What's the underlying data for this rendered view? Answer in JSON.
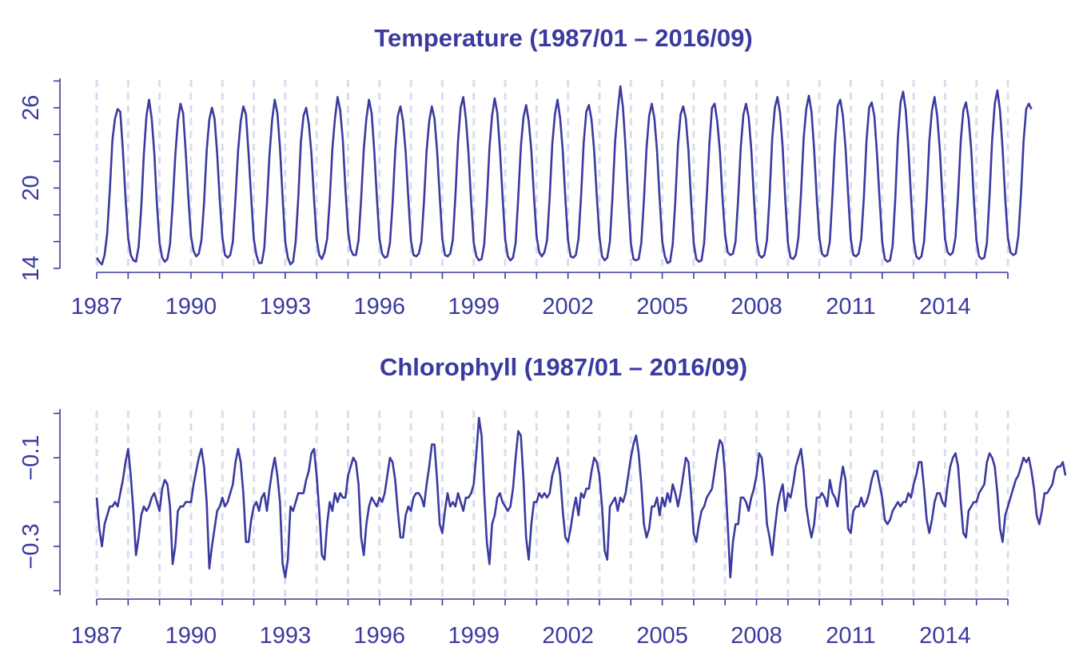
{
  "colors": {
    "primary": "#3a3aa0",
    "grid": "#dcdcf0",
    "background": "#ffffff"
  },
  "chart_data": [
    {
      "type": "line",
      "title": "Temperature (1987/01 – 2016/09)",
      "xlabel": "",
      "ylabel": "",
      "xlim": [
        "1987-01",
        "2016-09"
      ],
      "ylim": [
        14,
        28.2
      ],
      "x_ticks": [
        "1987",
        "1990",
        "1993",
        "1996",
        "1999",
        "2002",
        "2005",
        "2008",
        "2011",
        "2014"
      ],
      "y_ticks": [
        "14",
        "20",
        "26"
      ],
      "y_tick_values": [
        14,
        20,
        26
      ],
      "y_minor_ticks": [
        16,
        18,
        22,
        24,
        28
      ],
      "grid": "vertical dashed at each year",
      "start": "1987-01",
      "frequency": "monthly",
      "series": [
        {
          "values": [
            14.8,
            14.5,
            14.3,
            15.0,
            16.6,
            19.8,
            23.6,
            25.2,
            25.9,
            25.7,
            22.8,
            19.3,
            16.3,
            15.0,
            14.6,
            14.5,
            15.6,
            18.5,
            22.5,
            25.4,
            26.6,
            25.2,
            22.6,
            18.8,
            15.9,
            14.8,
            14.5,
            14.7,
            15.8,
            18.8,
            22.4,
            25.0,
            26.3,
            25.6,
            22.7,
            19.3,
            16.4,
            15.3,
            14.9,
            15.1,
            16.1,
            18.9,
            22.8,
            25.1,
            26.0,
            25.2,
            22.6,
            19.1,
            16.3,
            15.0,
            14.8,
            15.0,
            16.0,
            19.2,
            22.8,
            25.0,
            26.1,
            25.5,
            22.6,
            19.3,
            16.2,
            15.0,
            14.4,
            14.4,
            15.5,
            18.8,
            22.5,
            25.1,
            26.6,
            25.6,
            23.0,
            19.3,
            16.0,
            14.8,
            14.3,
            14.5,
            16.0,
            19.3,
            23.5,
            25.4,
            26.0,
            24.8,
            22.6,
            19.2,
            16.2,
            15.0,
            14.7,
            15.2,
            16.2,
            19.1,
            22.9,
            25.2,
            26.8,
            25.8,
            23.6,
            19.9,
            16.8,
            15.4,
            15.0,
            15.0,
            16.1,
            19.2,
            22.9,
            25.2,
            26.6,
            25.6,
            22.8,
            19.3,
            16.2,
            15.1,
            14.8,
            14.9,
            15.9,
            18.8,
            22.7,
            25.4,
            26.1,
            25.0,
            22.7,
            19.3,
            16.1,
            15.0,
            14.9,
            15.1,
            16.0,
            19.0,
            22.8,
            25.0,
            26.1,
            25.2,
            22.8,
            19.4,
            16.2,
            15.0,
            14.9,
            15.1,
            16.1,
            19.4,
            23.5,
            26.0,
            26.8,
            25.2,
            22.6,
            19.0,
            15.9,
            14.9,
            14.6,
            14.7,
            15.8,
            19.0,
            23.0,
            25.4,
            26.7,
            25.6,
            22.9,
            19.4,
            16.2,
            14.9,
            14.6,
            14.8,
            15.9,
            19.3,
            23.1,
            25.3,
            26.2,
            25.0,
            22.8,
            19.4,
            16.4,
            15.2,
            14.9,
            15.2,
            16.1,
            19.3,
            23.3,
            25.5,
            26.6,
            25.2,
            22.8,
            19.2,
            16.1,
            14.9,
            14.8,
            15.0,
            16.2,
            19.4,
            23.4,
            25.7,
            26.2,
            25.1,
            22.8,
            19.4,
            16.4,
            14.9,
            14.6,
            14.8,
            16.0,
            19.4,
            23.5,
            25.8,
            27.6,
            26.0,
            23.0,
            19.2,
            15.9,
            14.7,
            14.6,
            14.7,
            15.9,
            19.1,
            23.0,
            25.4,
            26.3,
            25.2,
            22.8,
            19.2,
            16.0,
            14.9,
            14.4,
            14.5,
            15.8,
            19.1,
            23.2,
            25.5,
            26.1,
            25.2,
            22.8,
            19.1,
            15.9,
            14.7,
            14.5,
            14.6,
            15.9,
            19.4,
            23.3,
            26.0,
            26.3,
            25.0,
            22.8,
            19.3,
            16.5,
            15.2,
            15.0,
            15.1,
            16.0,
            19.2,
            23.1,
            25.5,
            26.3,
            25.3,
            22.9,
            19.3,
            16.1,
            15.0,
            14.8,
            15.0,
            16.1,
            19.4,
            23.7,
            26.0,
            26.8,
            25.6,
            23.0,
            19.1,
            15.9,
            14.8,
            14.7,
            15.0,
            16.3,
            19.6,
            23.7,
            25.9,
            26.9,
            25.7,
            22.9,
            19.3,
            16.3,
            15.1,
            14.9,
            15.0,
            16.0,
            19.4,
            23.4,
            26.1,
            26.6,
            25.4,
            23.0,
            19.5,
            16.2,
            15.0,
            14.9,
            15.1,
            16.2,
            19.3,
            23.5,
            26.0,
            26.4,
            25.4,
            22.6,
            19.2,
            16.0,
            14.7,
            14.5,
            14.6,
            15.7,
            19.2,
            23.8,
            26.4,
            27.2,
            25.8,
            23.0,
            19.4,
            16.1,
            14.9,
            14.7,
            14.9,
            16.0,
            19.3,
            23.5,
            25.8,
            26.8,
            25.4,
            22.9,
            19.4,
            16.2,
            15.2,
            15.0,
            15.2,
            16.3,
            19.5,
            23.5,
            25.8,
            26.4,
            25.2,
            22.9,
            19.2,
            16.1,
            14.9,
            14.7,
            14.8,
            15.9,
            19.4,
            23.6,
            26.3,
            27.3,
            25.8,
            22.9,
            19.2,
            16.3,
            15.2,
            15.0,
            15.1,
            16.4,
            19.5,
            23.5,
            25.9,
            26.3,
            25.9
          ]
        }
      ]
    },
    {
      "type": "line",
      "title": "Chlorophyll (1987/01 – 2016/09)",
      "xlabel": "",
      "ylabel": "",
      "xlim": [
        "1987-01",
        "2016-09"
      ],
      "ylim": [
        -0.41,
        0.01
      ],
      "x_ticks": [
        "1987",
        "1990",
        "1993",
        "1996",
        "1999",
        "2002",
        "2005",
        "2008",
        "2011",
        "2014"
      ],
      "y_ticks": [
        "-0.1",
        "-0.3"
      ],
      "y_tick_values": [
        -0.1,
        -0.3
      ],
      "y_minor_ticks": [
        0.0,
        -0.2,
        -0.4
      ],
      "grid": "vertical dashed at each year",
      "start": "1987-01",
      "frequency": "monthly",
      "series": [
        {
          "values": [
            -0.19,
            -0.26,
            -0.3,
            -0.25,
            -0.23,
            -0.21,
            -0.21,
            -0.2,
            -0.21,
            -0.18,
            -0.15,
            -0.11,
            -0.08,
            -0.14,
            -0.22,
            -0.32,
            -0.28,
            -0.23,
            -0.21,
            -0.22,
            -0.21,
            -0.19,
            -0.18,
            -0.2,
            -0.22,
            -0.17,
            -0.15,
            -0.16,
            -0.21,
            -0.34,
            -0.3,
            -0.22,
            -0.21,
            -0.21,
            -0.2,
            -0.2,
            -0.2,
            -0.16,
            -0.13,
            -0.1,
            -0.08,
            -0.12,
            -0.2,
            -0.35,
            -0.3,
            -0.26,
            -0.22,
            -0.21,
            -0.19,
            -0.21,
            -0.2,
            -0.18,
            -0.16,
            -0.11,
            -0.08,
            -0.11,
            -0.18,
            -0.29,
            -0.29,
            -0.24,
            -0.21,
            -0.2,
            -0.22,
            -0.19,
            -0.18,
            -0.22,
            -0.17,
            -0.13,
            -0.1,
            -0.14,
            -0.2,
            -0.34,
            -0.37,
            -0.33,
            -0.21,
            -0.22,
            -0.2,
            -0.18,
            -0.18,
            -0.18,
            -0.15,
            -0.13,
            -0.09,
            -0.08,
            -0.14,
            -0.22,
            -0.32,
            -0.33,
            -0.25,
            -0.2,
            -0.22,
            -0.18,
            -0.2,
            -0.18,
            -0.19,
            -0.19,
            -0.14,
            -0.12,
            -0.1,
            -0.11,
            -0.16,
            -0.28,
            -0.32,
            -0.25,
            -0.21,
            -0.19,
            -0.2,
            -0.21,
            -0.19,
            -0.2,
            -0.18,
            -0.14,
            -0.1,
            -0.11,
            -0.15,
            -0.22,
            -0.28,
            -0.28,
            -0.23,
            -0.21,
            -0.22,
            -0.19,
            -0.18,
            -0.18,
            -0.19,
            -0.21,
            -0.16,
            -0.12,
            -0.07,
            -0.07,
            -0.15,
            -0.25,
            -0.27,
            -0.22,
            -0.18,
            -0.21,
            -0.2,
            -0.21,
            -0.18,
            -0.2,
            -0.22,
            -0.19,
            -0.19,
            -0.18,
            -0.16,
            -0.09,
            -0.01,
            -0.05,
            -0.18,
            -0.29,
            -0.34,
            -0.25,
            -0.23,
            -0.19,
            -0.18,
            -0.2,
            -0.21,
            -0.22,
            -0.21,
            -0.17,
            -0.1,
            -0.04,
            -0.05,
            -0.15,
            -0.28,
            -0.33,
            -0.25,
            -0.2,
            -0.2,
            -0.18,
            -0.19,
            -0.18,
            -0.19,
            -0.18,
            -0.14,
            -0.12,
            -0.1,
            -0.14,
            -0.22,
            -0.28,
            -0.29,
            -0.26,
            -0.22,
            -0.19,
            -0.23,
            -0.18,
            -0.19,
            -0.17,
            -0.17,
            -0.13,
            -0.1,
            -0.11,
            -0.14,
            -0.21,
            -0.31,
            -0.33,
            -0.21,
            -0.2,
            -0.19,
            -0.22,
            -0.19,
            -0.2,
            -0.18,
            -0.14,
            -0.1,
            -0.07,
            -0.05,
            -0.09,
            -0.16,
            -0.25,
            -0.28,
            -0.26,
            -0.21,
            -0.21,
            -0.19,
            -0.23,
            -0.19,
            -0.21,
            -0.18,
            -0.2,
            -0.16,
            -0.18,
            -0.21,
            -0.18,
            -0.14,
            -0.1,
            -0.11,
            -0.18,
            -0.27,
            -0.29,
            -0.25,
            -0.22,
            -0.21,
            -0.19,
            -0.18,
            -0.17,
            -0.13,
            -0.09,
            -0.06,
            -0.07,
            -0.14,
            -0.25,
            -0.37,
            -0.29,
            -0.25,
            -0.25,
            -0.19,
            -0.19,
            -0.2,
            -0.22,
            -0.19,
            -0.17,
            -0.14,
            -0.09,
            -0.1,
            -0.16,
            -0.25,
            -0.28,
            -0.32,
            -0.26,
            -0.21,
            -0.18,
            -0.16,
            -0.22,
            -0.18,
            -0.19,
            -0.16,
            -0.12,
            -0.1,
            -0.08,
            -0.13,
            -0.21,
            -0.25,
            -0.28,
            -0.25,
            -0.19,
            -0.19,
            -0.18,
            -0.19,
            -0.21,
            -0.15,
            -0.18,
            -0.19,
            -0.21,
            -0.16,
            -0.12,
            -0.15,
            -0.26,
            -0.27,
            -0.22,
            -0.21,
            -0.21,
            -0.19,
            -0.21,
            -0.2,
            -0.18,
            -0.15,
            -0.13,
            -0.13,
            -0.16,
            -0.19,
            -0.24,
            -0.25,
            -0.24,
            -0.22,
            -0.21,
            -0.2,
            -0.21,
            -0.2,
            -0.2,
            -0.18,
            -0.19,
            -0.16,
            -0.14,
            -0.11,
            -0.11,
            -0.17,
            -0.24,
            -0.27,
            -0.24,
            -0.2,
            -0.18,
            -0.18,
            -0.2,
            -0.21,
            -0.16,
            -0.12,
            -0.1,
            -0.09,
            -0.12,
            -0.2,
            -0.27,
            -0.28,
            -0.22,
            -0.21,
            -0.2,
            -0.2,
            -0.18,
            -0.17,
            -0.16,
            -0.11,
            -0.09,
            -0.1,
            -0.12,
            -0.18,
            -0.26,
            -0.29,
            -0.23,
            -0.21,
            -0.19,
            -0.17,
            -0.15,
            -0.14,
            -0.12,
            -0.1,
            -0.11,
            -0.1,
            -0.13,
            -0.17,
            -0.23,
            -0.25,
            -0.22,
            -0.18,
            -0.18,
            -0.17,
            -0.16,
            -0.13,
            -0.12,
            -0.12,
            -0.11,
            -0.14
          ]
        }
      ]
    }
  ]
}
